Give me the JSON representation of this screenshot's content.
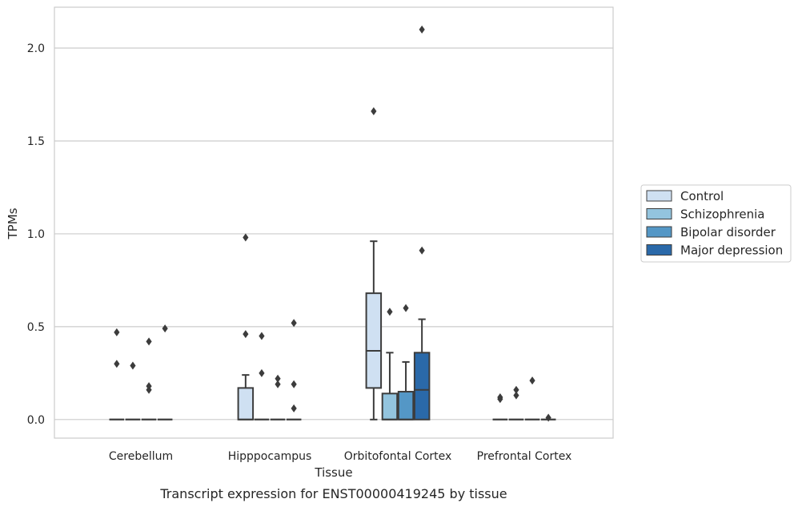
{
  "chart_data": {
    "type": "box",
    "title": "",
    "caption": "Transcript expression for ENST00000419245 by tissue",
    "xlabel": "Tissue",
    "ylabel": "TPMs",
    "ylim": [
      -0.1,
      2.22
    ],
    "yticks": [
      0.0,
      0.5,
      1.0,
      1.5,
      2.0
    ],
    "ytick_labels": [
      "0.0",
      "0.5",
      "1.0",
      "1.5",
      "2.0"
    ],
    "grid": "horizontal",
    "legend_position": "right",
    "categories": [
      "Cerebellum",
      "Hipppocampus",
      "Orbitofontal Cortex",
      "Prefrontal Cortex"
    ],
    "series": [
      {
        "name": "Control",
        "color": "#cfe0f2",
        "boxes": [
          {
            "whisker_low": 0.0,
            "q1": 0.0,
            "median": 0.0,
            "q3": 0.0,
            "whisker_high": 0.0,
            "outliers": [
              0.47,
              0.3
            ]
          },
          {
            "whisker_low": 0.0,
            "q1": 0.0,
            "median": 0.0,
            "q3": 0.17,
            "whisker_high": 0.24,
            "outliers": [
              0.98,
              0.46
            ]
          },
          {
            "whisker_low": 0.0,
            "q1": 0.17,
            "median": 0.37,
            "q3": 0.68,
            "whisker_high": 0.96,
            "outliers": [
              1.66
            ]
          },
          {
            "whisker_low": 0.0,
            "q1": 0.0,
            "median": 0.0,
            "q3": 0.0,
            "whisker_high": 0.0,
            "outliers": [
              0.12,
              0.11
            ]
          }
        ]
      },
      {
        "name": "Schizophrenia",
        "color": "#93c4de",
        "boxes": [
          {
            "whisker_low": 0.0,
            "q1": 0.0,
            "median": 0.0,
            "q3": 0.0,
            "whisker_high": 0.0,
            "outliers": [
              0.29
            ]
          },
          {
            "whisker_low": 0.0,
            "q1": 0.0,
            "median": 0.0,
            "q3": 0.0,
            "whisker_high": 0.0,
            "outliers": [
              0.45,
              0.25
            ]
          },
          {
            "whisker_low": 0.0,
            "q1": 0.0,
            "median": 0.0,
            "q3": 0.14,
            "whisker_high": 0.36,
            "outliers": [
              0.58
            ]
          },
          {
            "whisker_low": 0.0,
            "q1": 0.0,
            "median": 0.0,
            "q3": 0.0,
            "whisker_high": 0.0,
            "outliers": [
              0.16,
              0.13
            ]
          }
        ]
      },
      {
        "name": "Bipolar disorder",
        "color": "#5497c6",
        "boxes": [
          {
            "whisker_low": 0.0,
            "q1": 0.0,
            "median": 0.0,
            "q3": 0.0,
            "whisker_high": 0.0,
            "outliers": [
              0.42,
              0.18,
              0.16
            ]
          },
          {
            "whisker_low": 0.0,
            "q1": 0.0,
            "median": 0.0,
            "q3": 0.0,
            "whisker_high": 0.0,
            "outliers": [
              0.22,
              0.19
            ]
          },
          {
            "whisker_low": 0.0,
            "q1": 0.0,
            "median": 0.0,
            "q3": 0.15,
            "whisker_high": 0.31,
            "outliers": [
              0.6
            ]
          },
          {
            "whisker_low": 0.0,
            "q1": 0.0,
            "median": 0.0,
            "q3": 0.0,
            "whisker_high": 0.0,
            "outliers": [
              0.21
            ]
          }
        ]
      },
      {
        "name": "Major depression",
        "color": "#2a69a9",
        "boxes": [
          {
            "whisker_low": 0.0,
            "q1": 0.0,
            "median": 0.0,
            "q3": 0.0,
            "whisker_high": 0.0,
            "outliers": [
              0.49
            ]
          },
          {
            "whisker_low": 0.0,
            "q1": 0.0,
            "median": 0.0,
            "q3": 0.0,
            "whisker_high": 0.0,
            "outliers": [
              0.52,
              0.19,
              0.06
            ]
          },
          {
            "whisker_low": 0.0,
            "q1": 0.0,
            "median": 0.16,
            "q3": 0.36,
            "whisker_high": 0.54,
            "outliers": [
              2.1,
              0.91
            ]
          },
          {
            "whisker_low": 0.0,
            "q1": 0.0,
            "median": 0.0,
            "q3": 0.0,
            "whisker_high": 0.0,
            "outliers": [
              0.01
            ]
          }
        ]
      }
    ]
  }
}
